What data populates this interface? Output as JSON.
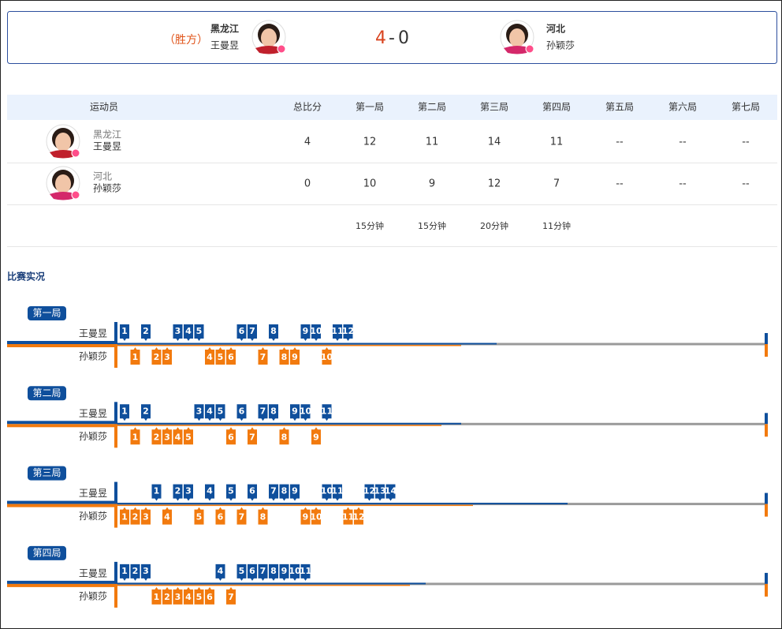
{
  "header": {
    "winner_tag": "（胜方）",
    "left": {
      "team": "黑龙江",
      "name": "王曼昱"
    },
    "score": {
      "left": 4,
      "sep": "-",
      "right": 0
    },
    "right": {
      "team": "河北",
      "name": "孙颖莎"
    }
  },
  "table": {
    "columns": [
      "运动员",
      "总比分",
      "第一局",
      "第二局",
      "第三局",
      "第四局",
      "第五局",
      "第六局",
      "第七局"
    ],
    "rows": [
      {
        "team": "黑龙江",
        "name": "王曼昱",
        "cells": [
          4,
          12,
          11,
          14,
          11,
          "--",
          "--",
          "--"
        ]
      },
      {
        "team": "河北",
        "name": "孙颖莎",
        "cells": [
          0,
          10,
          9,
          12,
          7,
          "--",
          "--",
          "--"
        ]
      }
    ],
    "durations": [
      "15分钟",
      "15分钟",
      "20分钟",
      "11分钟"
    ]
  },
  "live": {
    "title": "比赛实况",
    "games": [
      {
        "label": "第一局",
        "top": "王曼昱",
        "bottom": "孙颖莎",
        "rallies": [
          [
            1,
            null
          ],
          [
            null,
            1
          ],
          [
            2,
            null
          ],
          [
            null,
            2
          ],
          [
            null,
            3
          ],
          [
            3,
            null
          ],
          [
            4,
            null
          ],
          [
            5,
            null
          ],
          [
            null,
            4
          ],
          [
            null,
            5
          ],
          [
            null,
            6
          ],
          [
            6,
            null
          ],
          [
            7,
            null
          ],
          [
            null,
            7
          ],
          [
            8,
            null
          ],
          [
            null,
            8
          ],
          [
            null,
            9
          ],
          [
            9,
            null
          ],
          [
            10,
            null
          ],
          [
            null,
            10
          ],
          [
            11,
            null
          ],
          [
            12,
            null
          ]
        ]
      },
      {
        "label": "第二局",
        "top": "王曼昱",
        "bottom": "孙颖莎",
        "rallies": [
          [
            1,
            null
          ],
          [
            null,
            1
          ],
          [
            2,
            null
          ],
          [
            null,
            2
          ],
          [
            null,
            3
          ],
          [
            null,
            4
          ],
          [
            null,
            5
          ],
          [
            3,
            null
          ],
          [
            4,
            null
          ],
          [
            5,
            null
          ],
          [
            null,
            6
          ],
          [
            6,
            null
          ],
          [
            null,
            7
          ],
          [
            7,
            null
          ],
          [
            8,
            null
          ],
          [
            null,
            8
          ],
          [
            9,
            null
          ],
          [
            10,
            null
          ],
          [
            null,
            9
          ],
          [
            11,
            null
          ]
        ]
      },
      {
        "label": "第三局",
        "top": "王曼昱",
        "bottom": "孙颖莎",
        "rallies": [
          [
            null,
            1
          ],
          [
            null,
            2
          ],
          [
            null,
            3
          ],
          [
            1,
            null
          ],
          [
            null,
            4
          ],
          [
            2,
            null
          ],
          [
            3,
            null
          ],
          [
            null,
            5
          ],
          [
            4,
            null
          ],
          [
            null,
            6
          ],
          [
            5,
            null
          ],
          [
            null,
            7
          ],
          [
            6,
            null
          ],
          [
            null,
            8
          ],
          [
            7,
            null
          ],
          [
            8,
            null
          ],
          [
            9,
            null
          ],
          [
            null,
            9
          ],
          [
            null,
            10
          ],
          [
            10,
            null
          ],
          [
            11,
            null
          ],
          [
            null,
            11
          ],
          [
            null,
            12
          ],
          [
            12,
            null
          ],
          [
            13,
            null
          ],
          [
            14,
            null
          ]
        ]
      },
      {
        "label": "第四局",
        "top": "王曼昱",
        "bottom": "孙颖莎",
        "rallies": [
          [
            1,
            null
          ],
          [
            2,
            null
          ],
          [
            3,
            null
          ],
          [
            null,
            1
          ],
          [
            null,
            2
          ],
          [
            null,
            3
          ],
          [
            null,
            4
          ],
          [
            null,
            5
          ],
          [
            null,
            6
          ],
          [
            4,
            null
          ],
          [
            null,
            7
          ],
          [
            5,
            null
          ],
          [
            6,
            null
          ],
          [
            7,
            null
          ],
          [
            8,
            null
          ],
          [
            9,
            null
          ],
          [
            10,
            null
          ],
          [
            11,
            null
          ]
        ]
      }
    ]
  }
}
